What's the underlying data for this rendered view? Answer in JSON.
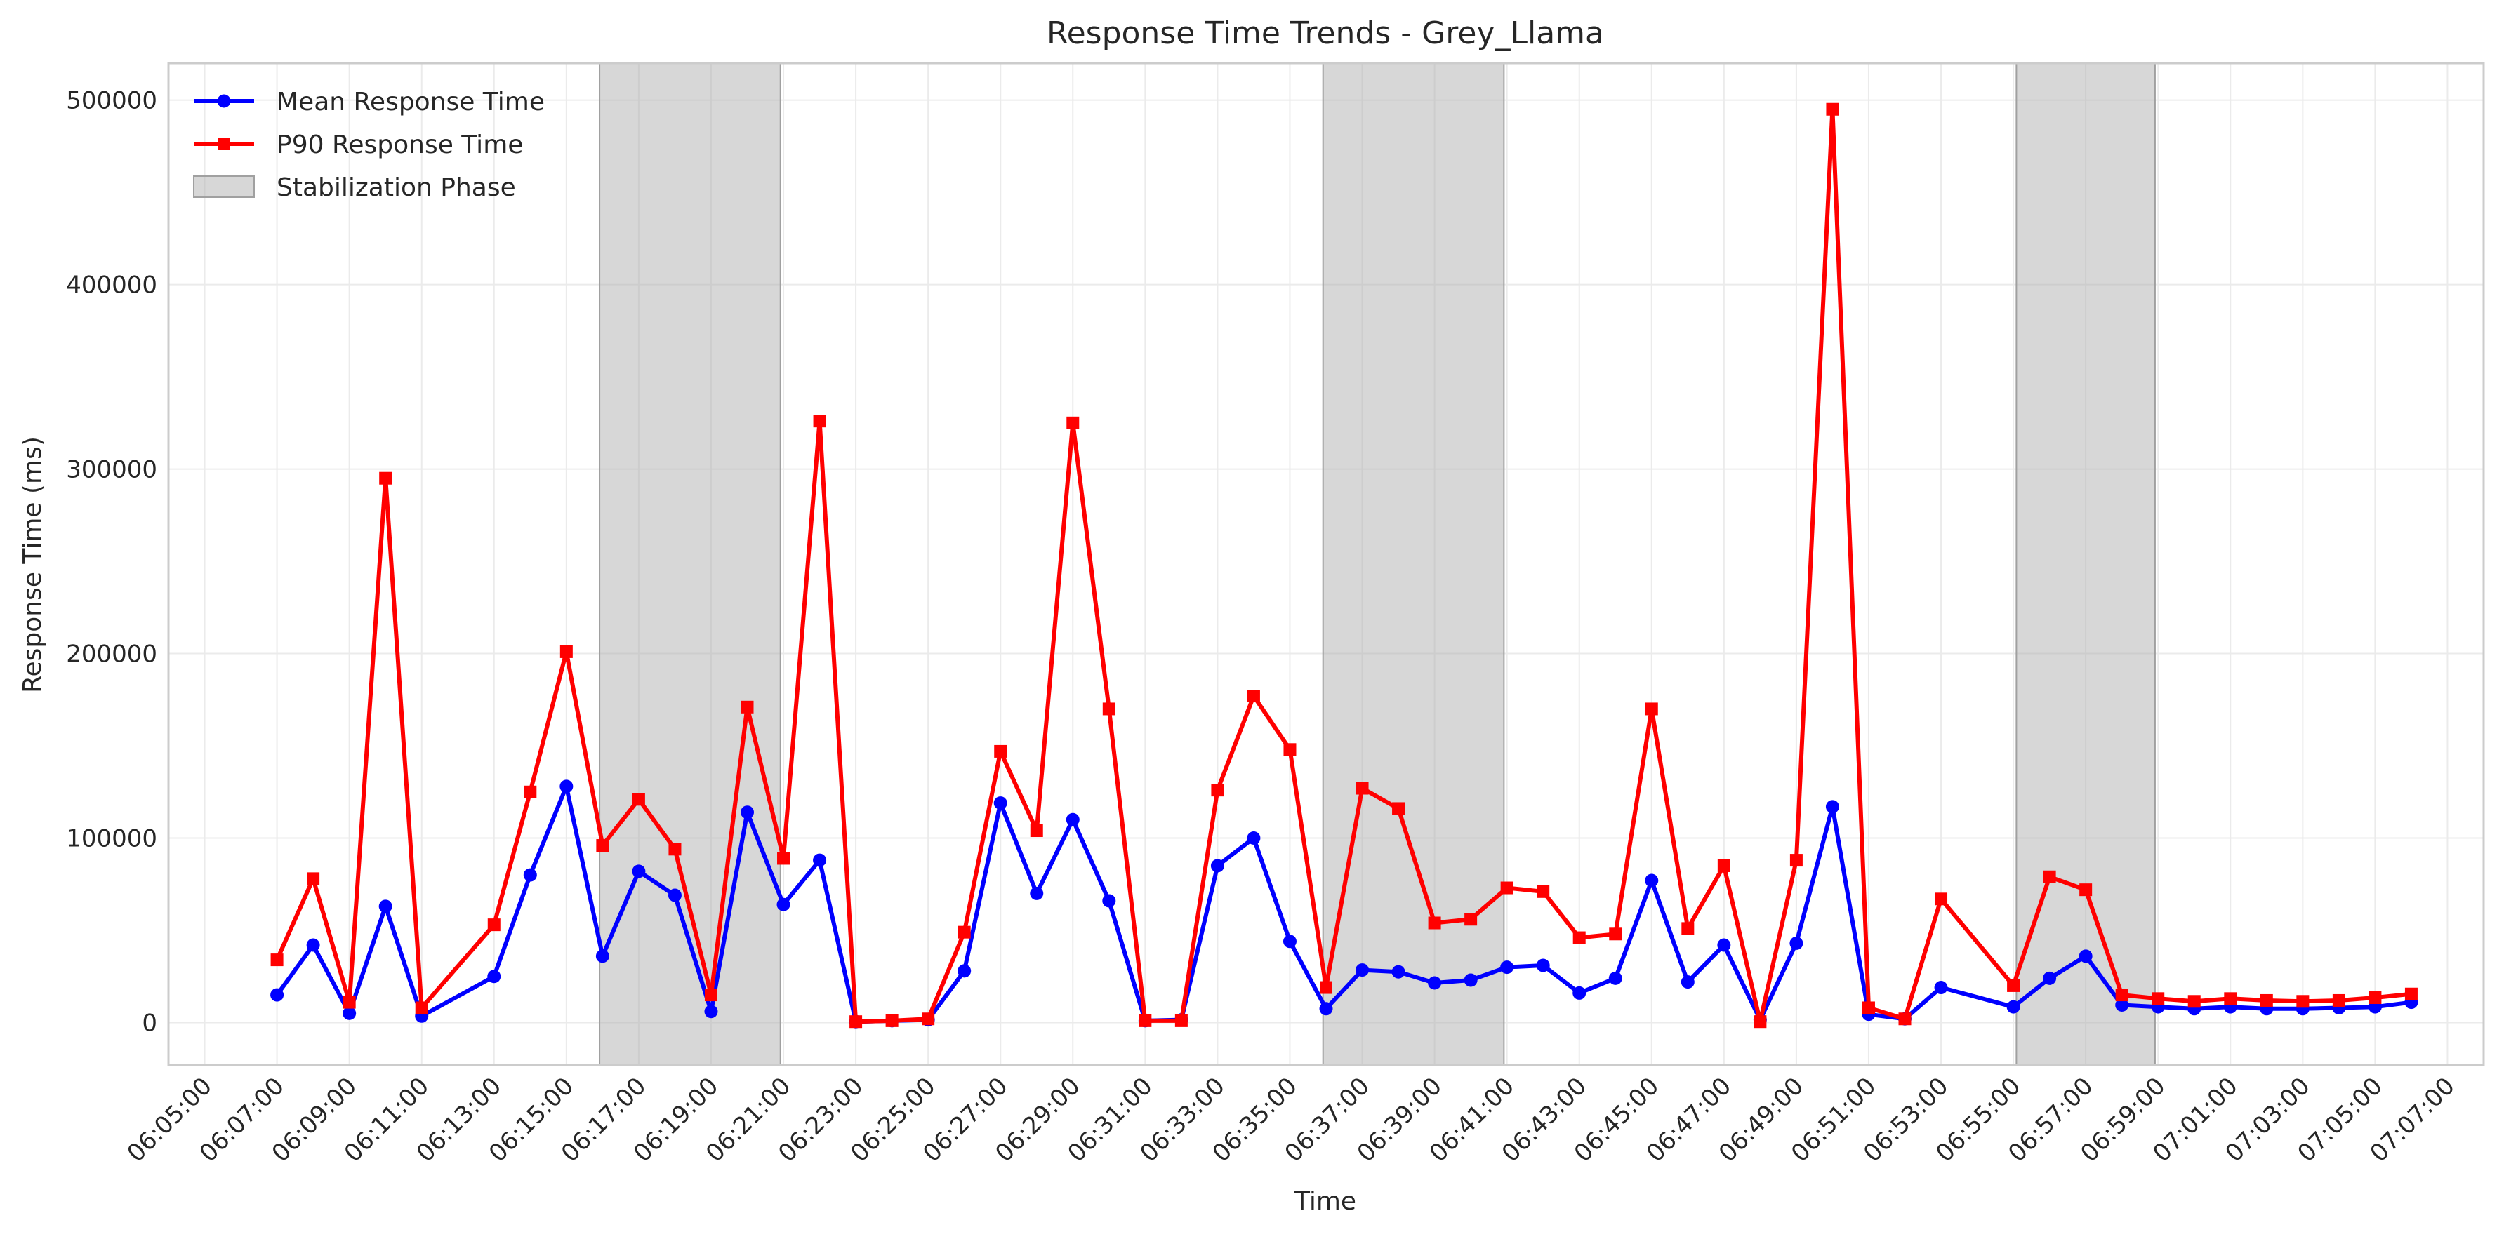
{
  "chart_data": {
    "type": "line",
    "title": "Response Time Trends - Grey_Llama",
    "xlabel": "Time",
    "ylabel": "Response Time (ms)",
    "x_ticks": [
      "06:05:00",
      "06:07:00",
      "06:09:00",
      "06:11:00",
      "06:13:00",
      "06:15:00",
      "06:17:00",
      "06:19:00",
      "06:21:00",
      "06:23:00",
      "06:25:00",
      "06:27:00",
      "06:29:00",
      "06:31:00",
      "06:33:00",
      "06:35:00",
      "06:37:00",
      "06:39:00",
      "06:41:00",
      "06:43:00",
      "06:45:00",
      "06:47:00",
      "06:49:00",
      "06:51:00",
      "06:53:00",
      "06:55:00",
      "06:57:00",
      "06:59:00",
      "07:01:00",
      "07:03:00",
      "07:05:00",
      "07:07:00"
    ],
    "xlim": [
      "06:04:00",
      "07:08:00"
    ],
    "y_ticks": [
      0,
      100000,
      200000,
      300000,
      400000,
      500000
    ],
    "ylim": [
      -23000,
      520000
    ],
    "grid": true,
    "legend_position": "top-left",
    "stabilization_phases": [
      [
        "06:15:55",
        "06:20:55"
      ],
      [
        "06:35:55",
        "06:40:55"
      ],
      [
        "06:55:05",
        "06:58:55"
      ]
    ],
    "series": [
      {
        "name": "Mean Response Time",
        "color": "#0000ff",
        "marker": "circle",
        "points": [
          [
            "06:07:00",
            15000
          ],
          [
            "06:08:00",
            42000
          ],
          [
            "06:09:00",
            5000
          ],
          [
            "06:10:00",
            63000
          ],
          [
            "06:11:00",
            3500
          ],
          [
            "06:13:00",
            25000
          ],
          [
            "06:14:00",
            80000
          ],
          [
            "06:15:00",
            128000
          ],
          [
            "06:16:00",
            36000
          ],
          [
            "06:17:00",
            82000
          ],
          [
            "06:18:00",
            69000
          ],
          [
            "06:19:00",
            6000
          ],
          [
            "06:20:00",
            114000
          ],
          [
            "06:21:00",
            64000
          ],
          [
            "06:22:00",
            88000
          ],
          [
            "06:23:00",
            500
          ],
          [
            "06:24:00",
            1000
          ],
          [
            "06:25:00",
            1500
          ],
          [
            "06:26:00",
            28000
          ],
          [
            "06:27:00",
            119000
          ],
          [
            "06:28:00",
            70000
          ],
          [
            "06:29:00",
            110000
          ],
          [
            "06:30:00",
            66000
          ],
          [
            "06:31:00",
            1000
          ],
          [
            "06:32:00",
            1500
          ],
          [
            "06:33:00",
            85000
          ],
          [
            "06:34:00",
            100000
          ],
          [
            "06:35:00",
            44000
          ],
          [
            "06:36:00",
            7500
          ],
          [
            "06:37:00",
            28500
          ],
          [
            "06:38:00",
            27500
          ],
          [
            "06:39:00",
            21500
          ],
          [
            "06:40:00",
            23000
          ],
          [
            "06:41:00",
            30000
          ],
          [
            "06:42:00",
            31000
          ],
          [
            "06:43:00",
            16000
          ],
          [
            "06:44:00",
            24000
          ],
          [
            "06:45:00",
            77000
          ],
          [
            "06:46:00",
            22000
          ],
          [
            "06:47:00",
            42000
          ],
          [
            "06:48:00",
            1500
          ],
          [
            "06:49:00",
            43000
          ],
          [
            "06:50:00",
            117000
          ],
          [
            "06:51:00",
            4500
          ],
          [
            "06:52:00",
            2000
          ],
          [
            "06:53:00",
            19000
          ],
          [
            "06:55:00",
            8500
          ],
          [
            "06:56:00",
            24000
          ],
          [
            "06:57:00",
            36000
          ],
          [
            "06:58:00",
            9500
          ],
          [
            "06:59:00",
            8500
          ],
          [
            "07:00:00",
            7500
          ],
          [
            "07:01:00",
            8500
          ],
          [
            "07:02:00",
            7500
          ],
          [
            "07:03:00",
            7500
          ],
          [
            "07:04:00",
            8000
          ],
          [
            "07:05:00",
            8500
          ],
          [
            "07:06:00",
            11000
          ]
        ]
      },
      {
        "name": "P90 Response Time",
        "color": "#ff0000",
        "marker": "square",
        "points": [
          [
            "06:07:00",
            34000
          ],
          [
            "06:08:00",
            78000
          ],
          [
            "06:09:00",
            11000
          ],
          [
            "06:10:00",
            295000
          ],
          [
            "06:11:00",
            8000
          ],
          [
            "06:13:00",
            53000
          ],
          [
            "06:14:00",
            125000
          ],
          [
            "06:15:00",
            201000
          ],
          [
            "06:16:00",
            96000
          ],
          [
            "06:17:00",
            121000
          ],
          [
            "06:18:00",
            94000
          ],
          [
            "06:19:00",
            15000
          ],
          [
            "06:20:00",
            171000
          ],
          [
            "06:21:00",
            89000
          ],
          [
            "06:22:00",
            326000
          ],
          [
            "06:23:00",
            500
          ],
          [
            "06:24:00",
            1000
          ],
          [
            "06:25:00",
            2000
          ],
          [
            "06:26:00",
            49000
          ],
          [
            "06:27:00",
            147000
          ],
          [
            "06:28:00",
            104000
          ],
          [
            "06:29:00",
            325000
          ],
          [
            "06:30:00",
            170000
          ],
          [
            "06:31:00",
            1000
          ],
          [
            "06:32:00",
            1000
          ],
          [
            "06:33:00",
            126000
          ],
          [
            "06:34:00",
            177000
          ],
          [
            "06:35:00",
            148000
          ],
          [
            "06:36:00",
            19000
          ],
          [
            "06:37:00",
            127000
          ],
          [
            "06:38:00",
            116000
          ],
          [
            "06:39:00",
            54000
          ],
          [
            "06:40:00",
            56000
          ],
          [
            "06:41:00",
            73000
          ],
          [
            "06:42:00",
            71000
          ],
          [
            "06:43:00",
            46000
          ],
          [
            "06:44:00",
            48000
          ],
          [
            "06:45:00",
            170000
          ],
          [
            "06:46:00",
            51000
          ],
          [
            "06:47:00",
            85000
          ],
          [
            "06:48:00",
            500
          ],
          [
            "06:49:00",
            88000
          ],
          [
            "06:50:00",
            495000
          ],
          [
            "06:51:00",
            8000
          ],
          [
            "06:52:00",
            2000
          ],
          [
            "06:53:00",
            67000
          ],
          [
            "06:55:00",
            20000
          ],
          [
            "06:56:00",
            79000
          ],
          [
            "06:57:00",
            72000
          ],
          [
            "06:58:00",
            15000
          ],
          [
            "06:59:00",
            13000
          ],
          [
            "07:00:00",
            11500
          ],
          [
            "07:01:00",
            13000
          ],
          [
            "07:02:00",
            12000
          ],
          [
            "07:03:00",
            11500
          ],
          [
            "07:04:00",
            12000
          ],
          [
            "07:05:00",
            13500
          ],
          [
            "07:06:00",
            15500
          ]
        ]
      }
    ],
    "legend": [
      {
        "label": "Mean Response Time",
        "color": "#0000ff",
        "kind": "line-circle"
      },
      {
        "label": "P90 Response Time",
        "color": "#ff0000",
        "kind": "line-square"
      },
      {
        "label": "Stabilization Phase",
        "color": "#d3d3d3",
        "kind": "patch"
      }
    ]
  }
}
